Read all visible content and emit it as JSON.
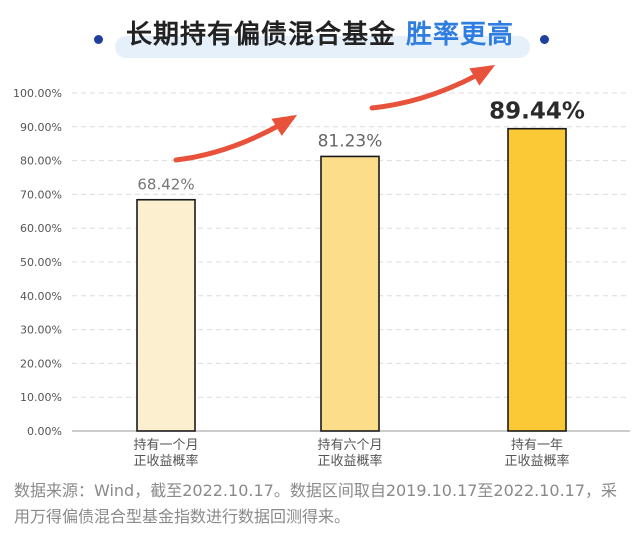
{
  "title": {
    "main": "长期持有偏债混合基金",
    "highlight": "胜率更高"
  },
  "colors": {
    "title_dot": "#1f3f9e",
    "title_highlight": "#2f7de1",
    "arrow": "#e8523a",
    "bars": [
      "#fbefcf",
      "#fbdd8a",
      "#fbc936"
    ],
    "bar_outline": "#1a1a1a"
  },
  "chart_data": {
    "type": "bar",
    "categories": [
      [
        "持有一个月",
        "正收益概率"
      ],
      [
        "持有六个月",
        "正收益概率"
      ],
      [
        "持有一年",
        "正收益概率"
      ]
    ],
    "values": [
      68.42,
      81.23,
      89.44
    ],
    "value_labels": [
      "68.42%",
      "81.23%",
      "89.44%"
    ],
    "y_ticks": [
      "0.00%",
      "10.00%",
      "20.00%",
      "30.00%",
      "40.00%",
      "50.00%",
      "60.00%",
      "70.00%",
      "80.00%",
      "90.00%",
      "100.00%"
    ],
    "ylim": [
      0,
      100
    ],
    "grid": true,
    "annotations": [
      "increasing-arrow",
      "increasing-arrow"
    ]
  },
  "footnote": "数据来源：Wind，截至2022.10.17。数据区间取自2019.10.17至2022.10.17，采用万得偏债混合型基金指数进行数据回测得来。"
}
